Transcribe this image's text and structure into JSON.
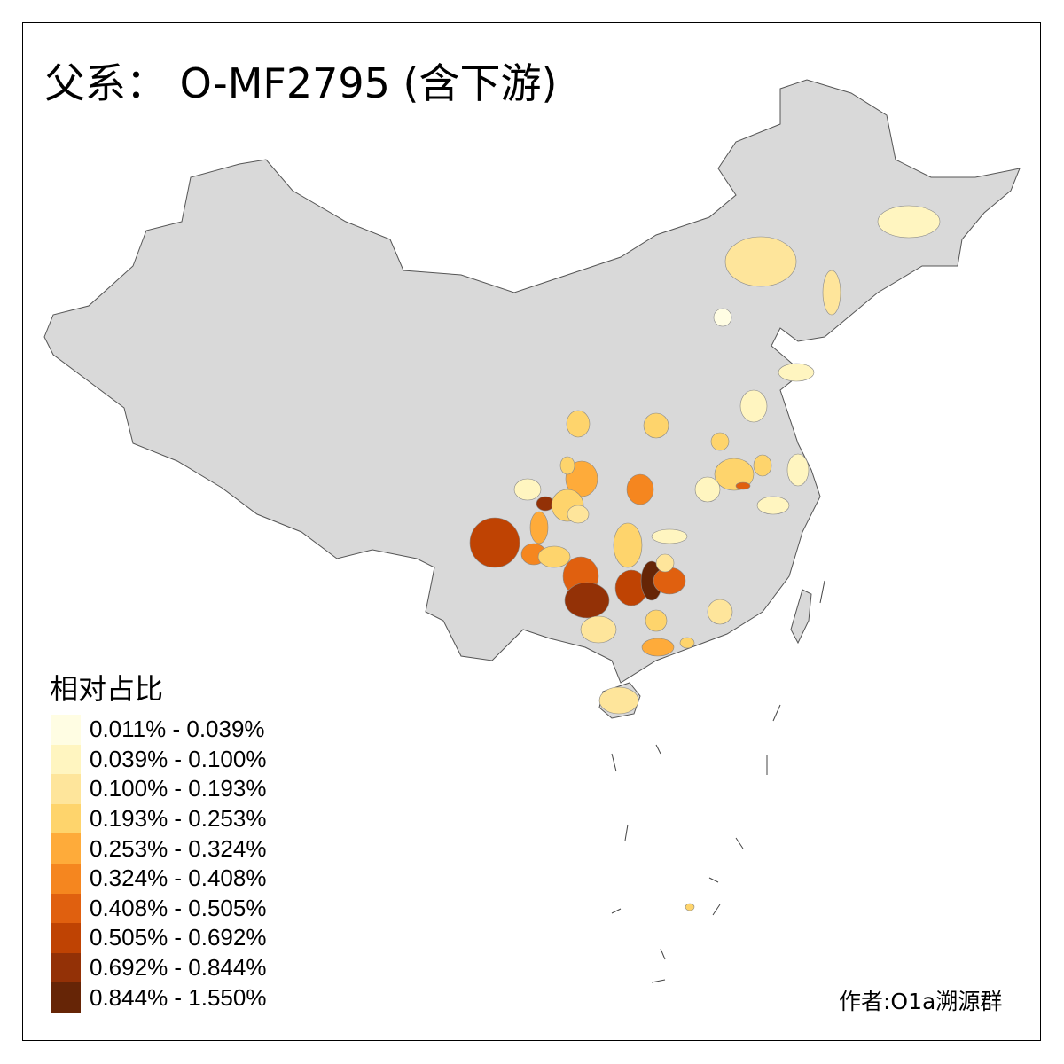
{
  "title": "父系： O-MF2795 (含下游)",
  "legend": {
    "title": "相对占比",
    "items": [
      {
        "label": "0.011% - 0.039%",
        "color": "#FFFDE3"
      },
      {
        "label": "0.039% - 0.100%",
        "color": "#FFF5C0"
      },
      {
        "label": "0.100% - 0.193%",
        "color": "#FEE59B"
      },
      {
        "label": "0.193% - 0.253%",
        "color": "#FED46C"
      },
      {
        "label": "0.253% - 0.324%",
        "color": "#FEAB3A"
      },
      {
        "label": "0.324% - 0.408%",
        "color": "#F5861F"
      },
      {
        "label": "0.408% - 0.505%",
        "color": "#E0600F"
      },
      {
        "label": "0.505% - 0.692%",
        "color": "#BF4303"
      },
      {
        "label": "0.692% - 0.844%",
        "color": "#933106"
      },
      {
        "label": "0.844% - 1.550%",
        "color": "#662506"
      }
    ]
  },
  "base_fill": "#D9D9D9",
  "credit": "作者:O1a溯源群"
}
